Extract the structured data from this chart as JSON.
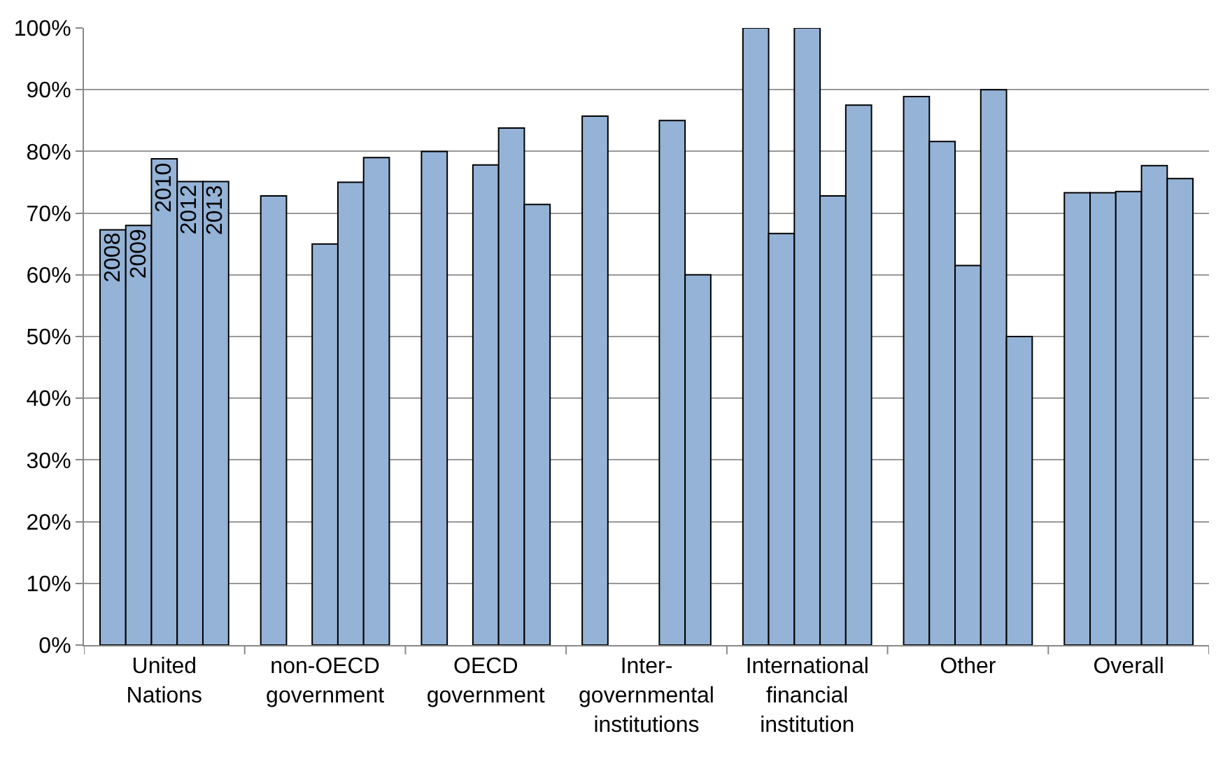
{
  "chart_data": {
    "type": "bar",
    "categories": [
      "United Nations",
      "non-OECD government",
      "OECD government",
      "Inter-governmental institutions",
      "International financial institution",
      "Other",
      "Overall"
    ],
    "series": [
      {
        "name": "2008",
        "color": "#95b3d7",
        "values": [
          67.3,
          72.8,
          80,
          85.7,
          100,
          88.9,
          73.3
        ]
      },
      {
        "name": "2009",
        "color": "#95b3d7",
        "values": [
          68,
          null,
          null,
          null,
          66.7,
          81.6,
          73.3
        ]
      },
      {
        "name": "2010",
        "color": "#95b3d7",
        "values": [
          78.8,
          65,
          77.8,
          null,
          100,
          61.5,
          73.5
        ]
      },
      {
        "name": "2012",
        "color": "#95b3d7",
        "values": [
          75.1,
          75,
          83.8,
          85,
          72.8,
          90,
          77.7
        ]
      },
      {
        "name": "2013",
        "color": "#95b3d7",
        "values": [
          75.1,
          79,
          71.4,
          60,
          87.5,
          50,
          75.6
        ]
      }
    ],
    "ylim": [
      0,
      100
    ],
    "yticks": [
      {
        "value": 0,
        "label": "0%"
      },
      {
        "value": 10,
        "label": "10%"
      },
      {
        "value": 20,
        "label": "20%"
      },
      {
        "value": 30,
        "label": "30%"
      },
      {
        "value": 40,
        "label": "40%"
      },
      {
        "value": 50,
        "label": "50%"
      },
      {
        "value": 60,
        "label": "60%"
      },
      {
        "value": 70,
        "label": "70%"
      },
      {
        "value": 80,
        "label": "80%"
      },
      {
        "value": 90,
        "label": "90%"
      },
      {
        "value": 100,
        "label": "100%"
      }
    ],
    "grid": "y",
    "legend": false
  }
}
